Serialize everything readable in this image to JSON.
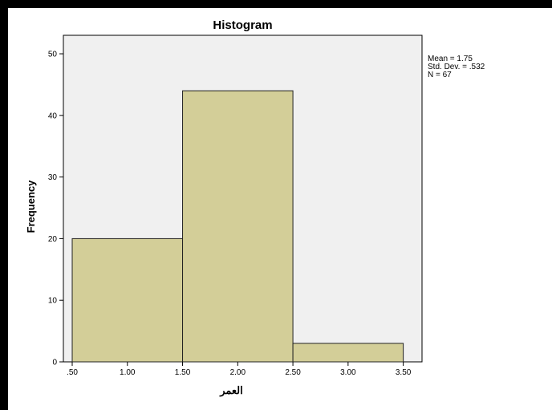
{
  "chart_data": {
    "type": "bar",
    "title": "Histogram",
    "xlabel": "العمر",
    "ylabel": "Frequency",
    "bins": [
      {
        "x0": 0.5,
        "x1": 1.5,
        "count": 20
      },
      {
        "x0": 1.5,
        "x1": 2.5,
        "count": 44
      },
      {
        "x0": 2.5,
        "x1": 3.5,
        "count": 3
      }
    ],
    "xlim": [
      0.42,
      3.67
    ],
    "ylim": [
      0,
      53
    ],
    "xticks": [
      {
        "value": 0.5,
        "label": ".50"
      },
      {
        "value": 1.0,
        "label": "1.00"
      },
      {
        "value": 1.5,
        "label": "1.50"
      },
      {
        "value": 2.0,
        "label": "2.00"
      },
      {
        "value": 2.5,
        "label": "2.50"
      },
      {
        "value": 3.0,
        "label": "3.00"
      },
      {
        "value": 3.5,
        "label": "3.50"
      }
    ],
    "yticks": [
      {
        "value": 0,
        "label": "0"
      },
      {
        "value": 10,
        "label": "10"
      },
      {
        "value": 20,
        "label": "20"
      },
      {
        "value": 30,
        "label": "30"
      },
      {
        "value": 40,
        "label": "40"
      },
      {
        "value": 50,
        "label": "50"
      }
    ],
    "stats": [
      "Mean = 1.75",
      "Std. Dev. = .532",
      "N = 67"
    ],
    "colors": {
      "bar_fill": "#d3ce98",
      "bar_stroke": "#222222",
      "plot_background": "#f0f0f0",
      "frame": "#000000"
    }
  }
}
